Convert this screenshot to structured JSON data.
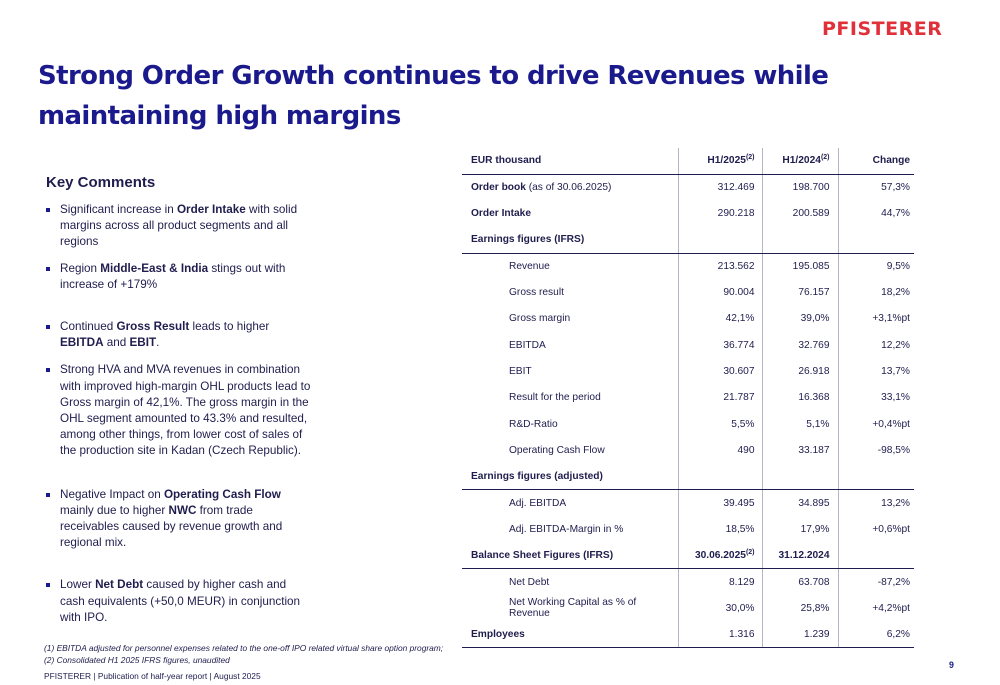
{
  "brand": {
    "logo_text": "PFISTERER",
    "color": "#e0303a"
  },
  "title": "Strong Order Growth continues to drive Revenues while maintaining high margins",
  "key_comments": {
    "heading": "Key Comments",
    "bullets": [
      [
        {
          "t": "Significant increase in ",
          "b": false
        },
        {
          "t": "Order Intake",
          "b": true
        },
        {
          "t": " with solid margins across all product segments and all regions",
          "b": false
        }
      ],
      [
        {
          "t": "Region ",
          "b": false
        },
        {
          "t": "Middle-East & India",
          "b": true
        },
        {
          "t": " stings out with increase of +179%",
          "b": false
        }
      ],
      [
        {
          "t": "Continued ",
          "b": false
        },
        {
          "t": "Gross Result",
          "b": true
        },
        {
          "t": " leads to higher ",
          "b": false
        },
        {
          "t": "EBITDA",
          "b": true
        },
        {
          "t": " and ",
          "b": false
        },
        {
          "t": "EBIT",
          "b": true
        },
        {
          "t": ".",
          "b": false
        }
      ],
      [
        {
          "t": "Strong HVA and MVA revenues in combination with improved high-margin OHL products lead to Gross margin of 42,1%. The gross margin in the OHL segment amounted to 43.3% and resulted, among other things, from lower cost of sales of the production site in Kadan (Czech Republic).",
          "b": false
        }
      ],
      [
        {
          "t": "Negative Impact on ",
          "b": false
        },
        {
          "t": "Operating Cash Flow",
          "b": true
        },
        {
          "t": " mainly due to higher ",
          "b": false
        },
        {
          "t": "NWC",
          "b": true
        },
        {
          "t": " from trade receivables caused by revenue growth and regional mix.",
          "b": false
        }
      ],
      [
        {
          "t": "Lower ",
          "b": false
        },
        {
          "t": "Net Debt",
          "b": true
        },
        {
          "t": " caused by higher cash and cash equivalents (+50,0 MEUR) in conjunction with IPO.",
          "b": false
        }
      ]
    ]
  },
  "table": {
    "header": {
      "label": "EUR thousand",
      "col1": "H1/2025",
      "col1_sup": "(2)",
      "col2": "H1/2024",
      "col2_sup": "(2)",
      "col3": "Change"
    },
    "rows": [
      {
        "label": "Order book",
        "label_suffix": " (as of 30.06.2025)",
        "v1": "312.469",
        "v2": "198.700",
        "v3": "57,3%",
        "kind": "bold"
      },
      {
        "label": "Order Intake",
        "label_suffix": "",
        "v1": "290.218",
        "v2": "200.589",
        "v3": "44,7%",
        "kind": "bold"
      },
      {
        "label": "Earnings figures (IFRS)",
        "label_suffix": "",
        "v1": "",
        "v2": "",
        "v3": "",
        "kind": "section"
      },
      {
        "label": "Revenue",
        "label_suffix": "",
        "v1": "213.562",
        "v2": "195.085",
        "v3": "9,5%",
        "kind": "sub"
      },
      {
        "label": "Gross result",
        "label_suffix": "",
        "v1": "90.004",
        "v2": "76.157",
        "v3": "18,2%",
        "kind": "sub"
      },
      {
        "label": "Gross margin",
        "label_suffix": "",
        "v1": "42,1%",
        "v2": "39,0%",
        "v3": "+3,1%pt",
        "kind": "sub"
      },
      {
        "label": "EBITDA",
        "label_suffix": "",
        "v1": "36.774",
        "v2": "32.769",
        "v3": "12,2%",
        "kind": "sub"
      },
      {
        "label": "EBIT",
        "label_suffix": "",
        "v1": "30.607",
        "v2": "26.918",
        "v3": "13,7%",
        "kind": "sub"
      },
      {
        "label": "Result for the period",
        "label_suffix": "",
        "v1": "21.787",
        "v2": "16.368",
        "v3": "33,1%",
        "kind": "sub"
      },
      {
        "label": "R&D-Ratio",
        "label_suffix": "",
        "v1": "5,5%",
        "v2": "5,1%",
        "v3": "+0,4%pt",
        "kind": "sub"
      },
      {
        "label": "Operating Cash Flow",
        "label_suffix": "",
        "v1": "490",
        "v2": "33.187",
        "v3": "-98,5%",
        "kind": "sub"
      },
      {
        "label": "Earnings figures (adjusted)",
        "label_suffix": "",
        "v1": "",
        "v2": "",
        "v3": "",
        "kind": "section"
      },
      {
        "label": "Adj. EBITDA",
        "label_suffix": "",
        "v1": "39.495",
        "v2": "34.895",
        "v3": "13,2%",
        "kind": "sub"
      },
      {
        "label": "Adj. EBITDA-Margin in %",
        "label_suffix": "",
        "v1": "18,5%",
        "v2": "17,9%",
        "v3": "+0,6%pt",
        "kind": "sub"
      },
      {
        "label": "Balance Sheet Figures (IFRS)",
        "label_suffix": "",
        "v1": "30.06.2025",
        "v1_sup": "(2)",
        "v2": "31.12.2024",
        "v3": "",
        "kind": "section_bold"
      },
      {
        "label": "Net Debt",
        "label_suffix": "",
        "v1": "8.129",
        "v2": "63.708",
        "v3": "-87,2%",
        "kind": "sub"
      },
      {
        "label": "Net Working Capital as % of Revenue",
        "label_suffix": "",
        "v1": "30,0%",
        "v2": "25,8%",
        "v3": "+4,2%pt",
        "kind": "sub"
      },
      {
        "label": "Employees",
        "label_suffix": "",
        "v1": "1.316",
        "v2": "1.239",
        "v3": "6,2%",
        "kind": "bold_last"
      }
    ]
  },
  "footnotes": [
    "(1) EBITDA adjusted for personnel expenses related to the one-off IPO related virtual share option program;",
    "(2) Consolidated H1 2025 IFRS figures, unaudited"
  ],
  "footer": "PFISTERER | Publication of half-year report | August 2025",
  "page_number": "9"
}
